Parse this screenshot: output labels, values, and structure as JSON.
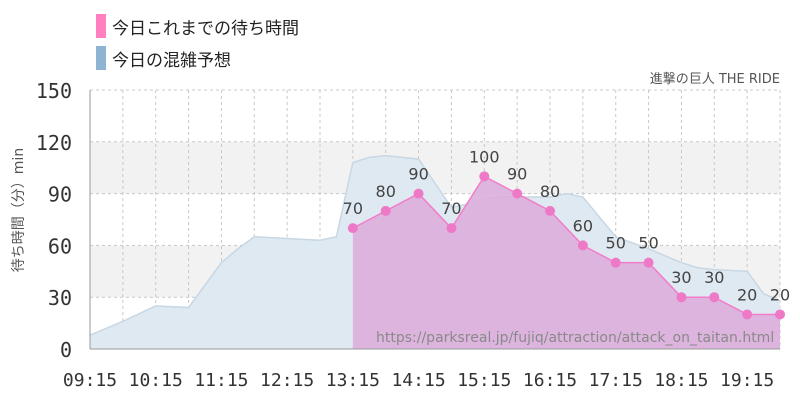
{
  "legend": [
    {
      "label": "今日これまでの待ち時間",
      "color": "#ff7fbf"
    },
    {
      "label": "今日の混雑予想",
      "color": "#8fb3d3"
    }
  ],
  "ride_name": "進撃の巨人 THE RIDE",
  "watermark": "https://parksreal.jp/fujiq/attraction/attack_on_taitan.html",
  "chart_data": {
    "type": "area",
    "title": "",
    "xlabel": "",
    "ylabel": "待ち時間（分）min",
    "ylim": [
      0,
      150
    ],
    "yticks": [
      0,
      30,
      60,
      90,
      120,
      150
    ],
    "xlim": [
      "09:15",
      "19:45"
    ],
    "xticks": [
      "09:15",
      "10:15",
      "11:15",
      "12:15",
      "13:15",
      "14:15",
      "15:15",
      "16:15",
      "17:15",
      "18:15",
      "19:15"
    ],
    "grid": true,
    "colors": {
      "actual_fill": "#dcaedb",
      "actual_line": "#f27dc9",
      "actual_marker": "#ee7ac7",
      "forecast_fill": "#dfe9f1",
      "forecast_line": "#c7d7e4",
      "band": "#f2f2f2",
      "gridline": "#c8c8c8"
    },
    "series": [
      {
        "name": "今日の混雑予想",
        "x": [
          "09:15",
          "09:45",
          "10:15",
          "10:45",
          "11:15",
          "11:30",
          "11:45",
          "12:15",
          "12:45",
          "13:00",
          "13:15",
          "13:30",
          "13:45",
          "14:15",
          "14:45",
          "15:00",
          "15:15",
          "15:30",
          "15:45",
          "16:15",
          "16:30",
          "16:45",
          "17:15",
          "17:45",
          "18:15",
          "18:30",
          "18:45",
          "19:15",
          "19:30",
          "19:45"
        ],
        "values": [
          8,
          16,
          25,
          24,
          50,
          58,
          65,
          64,
          63,
          65,
          108,
          111,
          112,
          110,
          82,
          84,
          87,
          88,
          88,
          88,
          90,
          88,
          65,
          58,
          50,
          47,
          46,
          45,
          32,
          28
        ]
      },
      {
        "name": "今日これまでの待ち時間",
        "x": [
          "13:15",
          "13:45",
          "14:15",
          "14:45",
          "15:15",
          "15:45",
          "16:15",
          "16:45",
          "17:15",
          "17:45",
          "18:15",
          "18:45",
          "19:15",
          "19:45"
        ],
        "values": [
          70,
          80,
          90,
          70,
          100,
          90,
          80,
          60,
          50,
          50,
          30,
          30,
          20,
          20
        ]
      }
    ]
  }
}
